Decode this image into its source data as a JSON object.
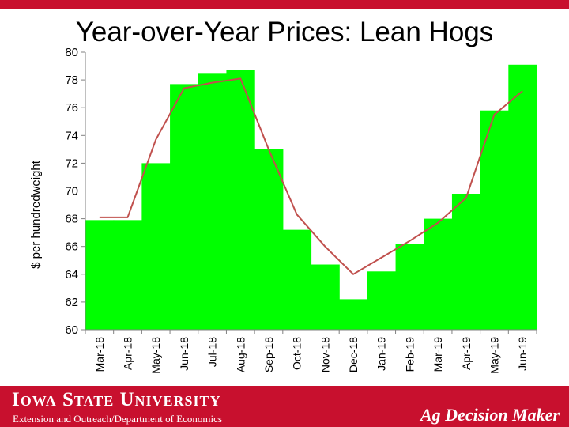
{
  "slide": {
    "title": "Year-over-Year Prices: Lean Hogs"
  },
  "chart_data": {
    "type": "bar",
    "title": "Year-over-Year Prices: Lean Hogs",
    "xlabel": "",
    "ylabel": "$ per hundredweight",
    "ylim": [
      60,
      80
    ],
    "yticks": [
      60,
      62,
      64,
      66,
      68,
      70,
      72,
      74,
      76,
      78,
      80
    ],
    "grid": false,
    "legend": "none",
    "categories": [
      "Mar-18",
      "Apr-18",
      "May-18",
      "Jun-18",
      "Jul-18",
      "Aug-18",
      "Sep-18",
      "Oct-18",
      "Nov-18",
      "Dec-18",
      "Jan-19",
      "Feb-19",
      "Mar-19",
      "Apr-19",
      "May-19",
      "Jun-19"
    ],
    "series": [
      {
        "type": "bar",
        "values": [
          67.9,
          67.9,
          72.0,
          77.7,
          78.5,
          78.7,
          73.0,
          67.2,
          64.7,
          62.2,
          64.2,
          66.2,
          68.0,
          69.8,
          75.8,
          79.1
        ],
        "color": "#00ff00"
      },
      {
        "type": "line",
        "values": [
          68.1,
          68.1,
          73.7,
          77.4,
          77.8,
          78.1,
          73.0,
          68.3,
          66.0,
          64.0,
          65.2,
          66.4,
          67.7,
          69.5,
          75.5,
          77.2
        ],
        "color": "#c0504d"
      }
    ]
  },
  "footer": {
    "university": "Iowa State University",
    "department": "Extension and Outreach/Department of Economics",
    "brand": "Ag Decision Maker"
  },
  "colors": {
    "isu_red": "#c8102e",
    "bar_green": "#00ff00",
    "line_red": "#c0504d"
  }
}
